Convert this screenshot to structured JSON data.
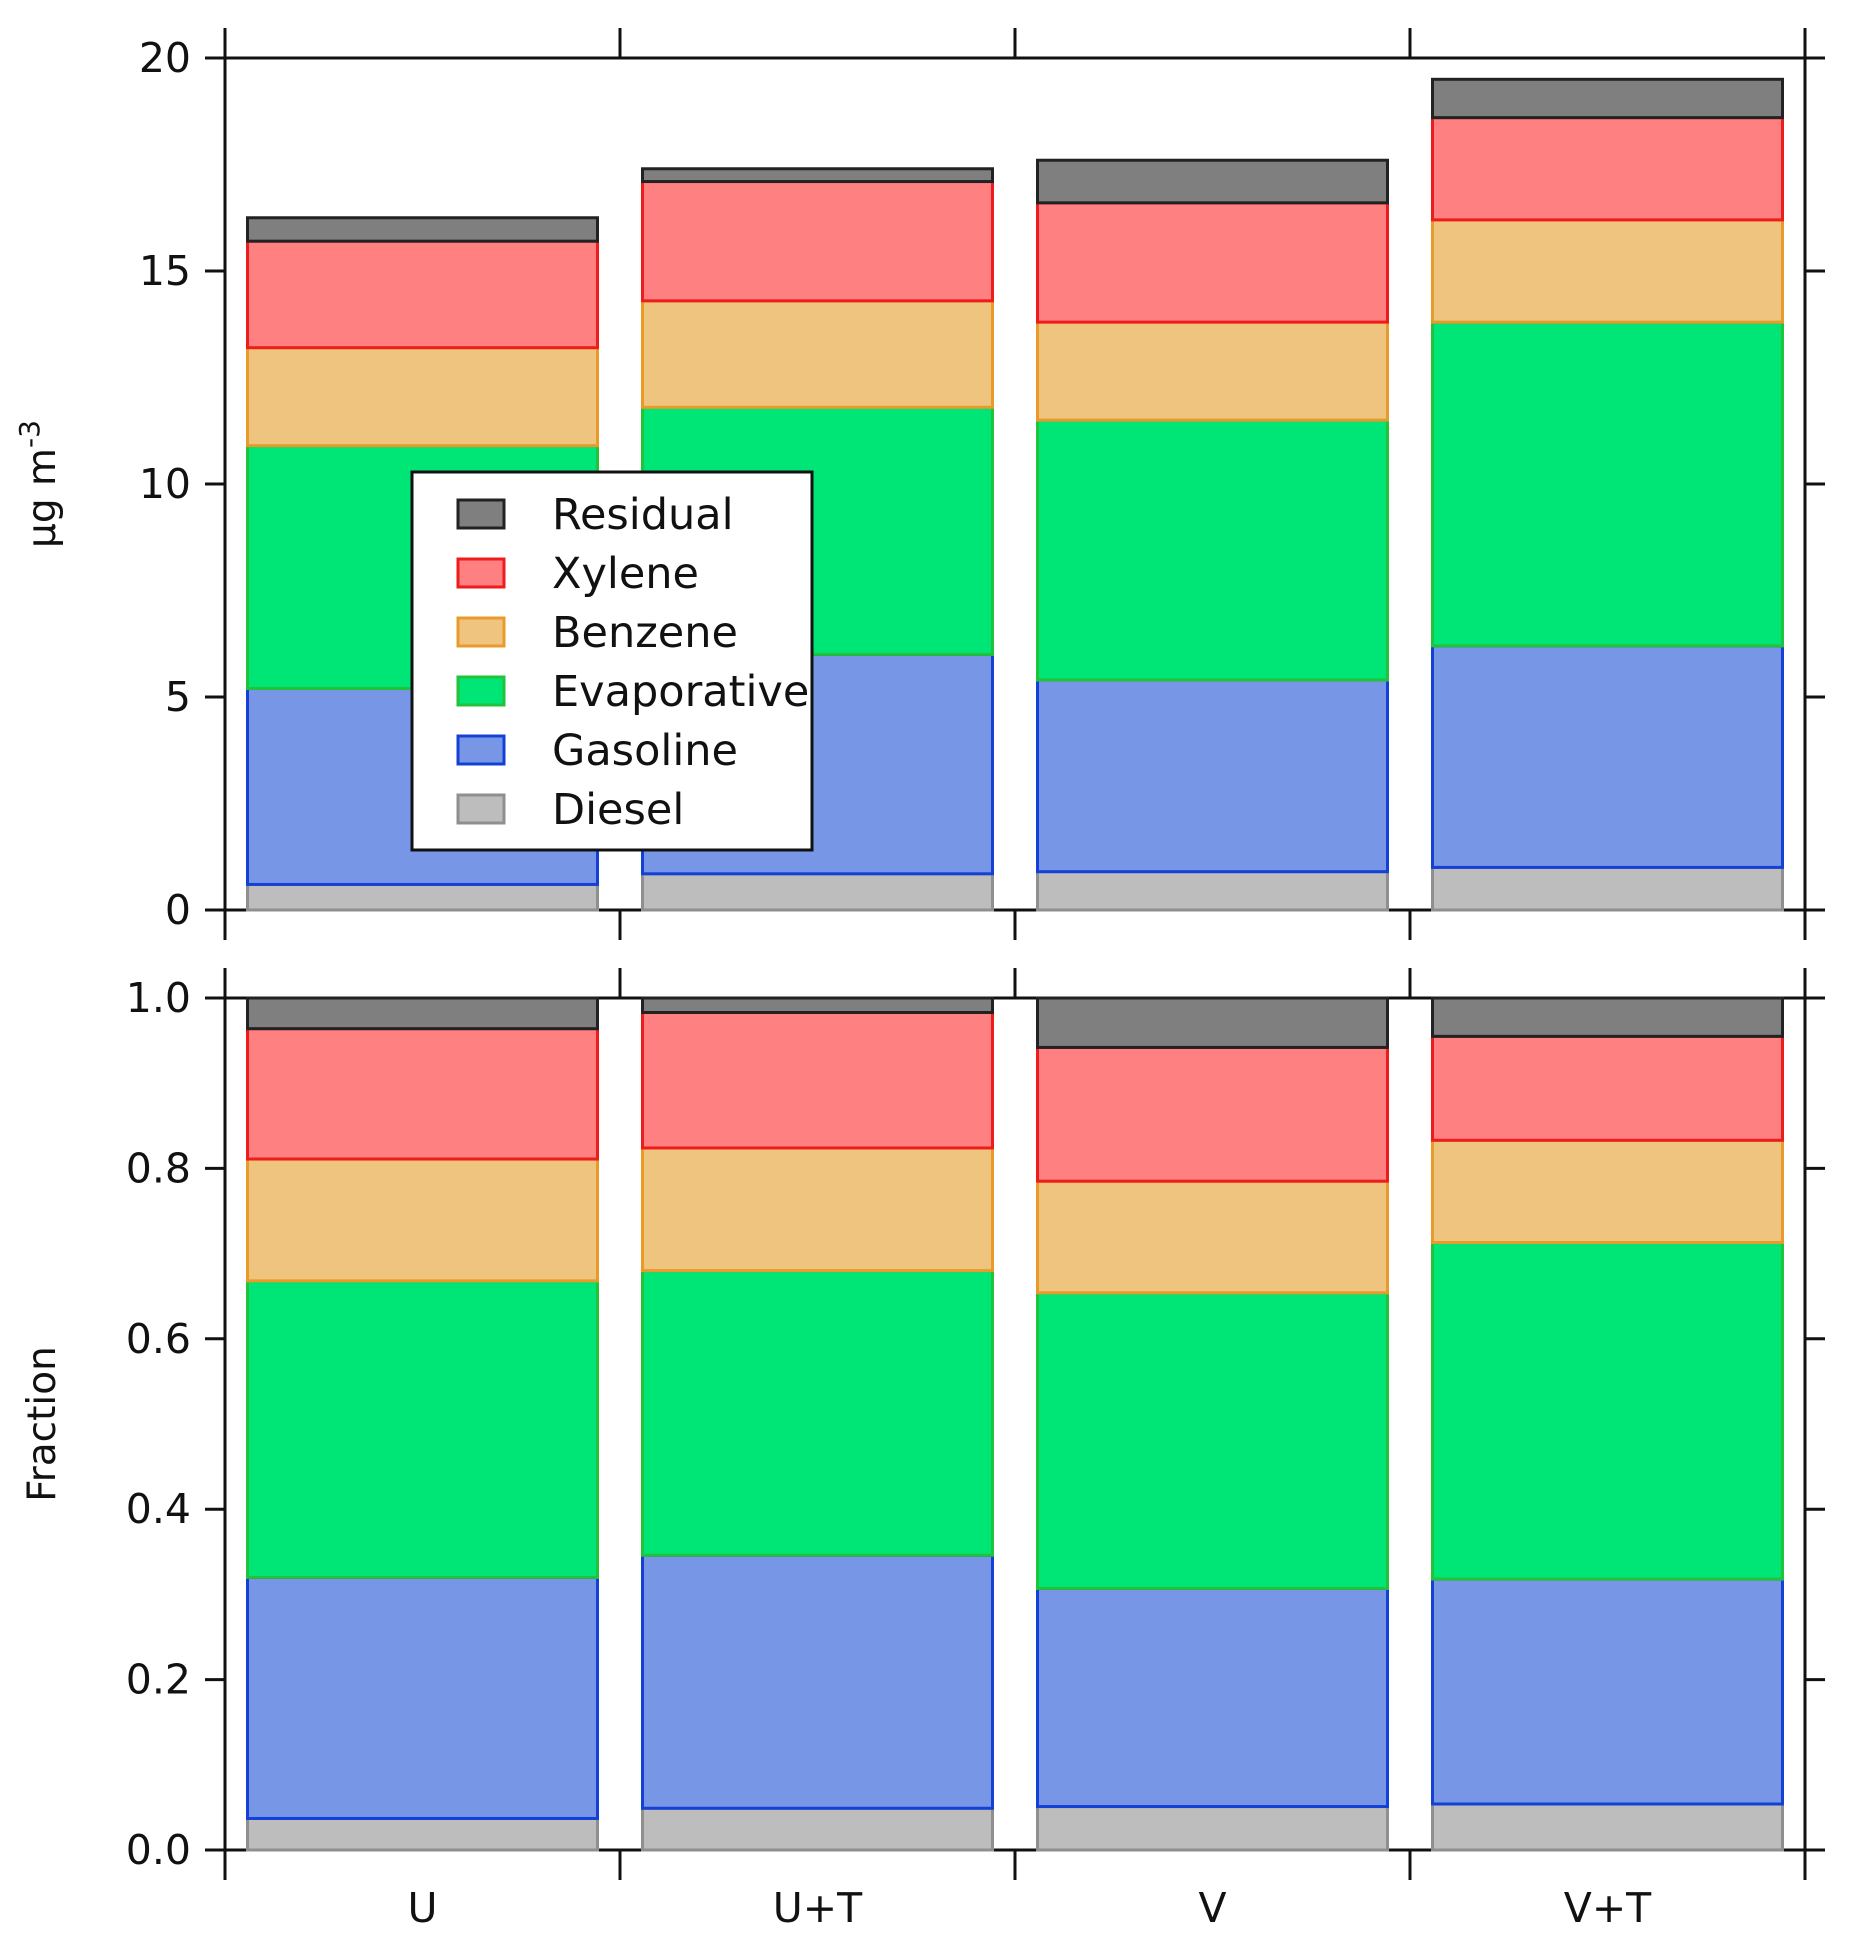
{
  "chart_data": [
    {
      "type": "bar",
      "stacked": true,
      "categories": [
        "U",
        "U+T",
        "V",
        "V+T"
      ],
      "ylabel": "µg m",
      "ylabel_superscript": "-3",
      "ylim": [
        0,
        20
      ],
      "yticks": [
        {
          "value": 0,
          "label": "0"
        },
        {
          "value": 5,
          "label": "5"
        },
        {
          "value": 10,
          "label": "10"
        },
        {
          "value": 15,
          "label": "15"
        },
        {
          "value": 20,
          "label": "20"
        }
      ],
      "series": [
        {
          "name": "Diesel",
          "values": [
            0.6,
            0.85,
            0.9,
            1.0
          ]
        },
        {
          "name": "Gasoline",
          "values": [
            4.6,
            5.15,
            4.5,
            5.2
          ]
        },
        {
          "name": "Evaporative",
          "values": [
            5.7,
            5.8,
            6.1,
            7.6
          ]
        },
        {
          "name": "Benzene",
          "values": [
            2.3,
            2.5,
            2.3,
            2.4
          ]
        },
        {
          "name": "Xylene",
          "values": [
            2.5,
            2.8,
            2.8,
            2.4
          ]
        },
        {
          "name": "Residual",
          "values": [
            0.55,
            0.3,
            1.0,
            0.9
          ]
        }
      ],
      "legend": {
        "placement": "inside-left",
        "entries": [
          "Residual",
          "Xylene",
          "Benzene",
          "Evaporative",
          "Gasoline",
          "Diesel"
        ]
      }
    },
    {
      "type": "bar",
      "stacked": true,
      "categories": [
        "U",
        "U+T",
        "V",
        "V+T"
      ],
      "ylabel": "Fraction",
      "ylim": [
        0,
        1
      ],
      "yticks": [
        {
          "value": 0,
          "label": "0.0"
        },
        {
          "value": 0.2,
          "label": "0.2"
        },
        {
          "value": 0.4,
          "label": "0.4"
        },
        {
          "value": 0.6,
          "label": "0.6"
        },
        {
          "value": 0.8,
          "label": "0.8"
        },
        {
          "value": 1.0,
          "label": "1.0"
        }
      ],
      "series": [
        {
          "name": "Diesel",
          "values": [
            0.037,
            0.049,
            0.051,
            0.054
          ]
        },
        {
          "name": "Gasoline",
          "values": [
            0.283,
            0.297,
            0.256,
            0.264
          ]
        },
        {
          "name": "Evaporative",
          "values": [
            0.348,
            0.334,
            0.347,
            0.395
          ]
        },
        {
          "name": "Benzene",
          "values": [
            0.143,
            0.144,
            0.131,
            0.12
          ]
        },
        {
          "name": "Xylene",
          "values": [
            0.153,
            0.159,
            0.157,
            0.122
          ]
        },
        {
          "name": "Residual",
          "values": [
            0.036,
            0.017,
            0.058,
            0.045
          ]
        }
      ]
    }
  ],
  "colors": {
    "Diesel": {
      "fill": "#bdbdbd",
      "stroke": "#8f8f8f"
    },
    "Gasoline": {
      "fill": "#7797e6",
      "stroke": "#1440d6"
    },
    "Evaporative": {
      "fill": "#00e676",
      "stroke": "#22c23a"
    },
    "Benzene": {
      "fill": "#efc47e",
      "stroke": "#e89a2a"
    },
    "Xylene": {
      "fill": "#ff8080",
      "stroke": "#ee1c1c"
    },
    "Residual": {
      "fill": "#7f7f7f",
      "stroke": "#222222"
    }
  }
}
